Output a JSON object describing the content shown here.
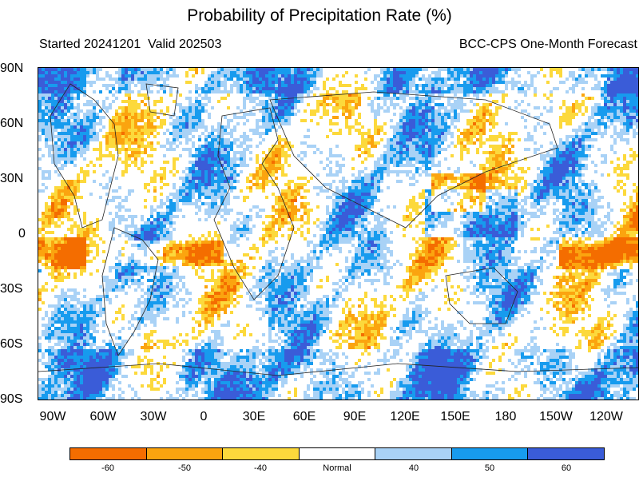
{
  "title": "Probability of Precipitation Rate (%)",
  "subtitle_left": "Started 20241201  Valid 202503",
  "subtitle_right": "BCC-CPS One-Month Forecast",
  "lat_labels": [
    "90N",
    "60N",
    "30N",
    "0",
    "30S",
    "60S",
    "90S"
  ],
  "lon_labels": [
    "90W",
    "60W",
    "30W",
    "0",
    "30E",
    "60E",
    "90E",
    "120E",
    "150E",
    "180",
    "150W",
    "120W"
  ],
  "colorbar": [
    {
      "label": "-60",
      "color": "#F46D00"
    },
    {
      "label": "-50",
      "color": "#FBA40F"
    },
    {
      "label": "-40",
      "color": "#FCD93C"
    },
    {
      "label": "Normal",
      "color": "#FFFFFF"
    },
    {
      "label": "40",
      "color": "#A9D2F6"
    },
    {
      "label": "50",
      "color": "#179BEE"
    },
    {
      "label": "60",
      "color": "#3A5CD8"
    }
  ],
  "map": {
    "type": "global precipitation probability anomaly field",
    "coastlines": true
  }
}
